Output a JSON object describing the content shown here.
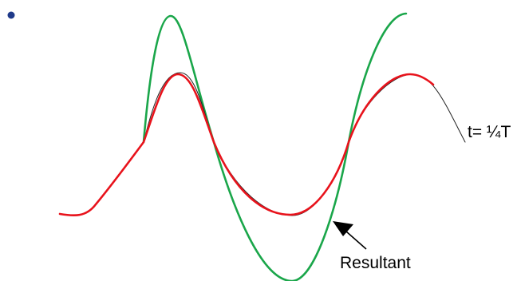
{
  "labels": {
    "time": "t= ¼T",
    "resultant": "Resultant"
  },
  "colors": {
    "bullet": "#1f3a8a",
    "green_wave": "#1aa64a",
    "red_wave": "#e8121b",
    "black_wave": "#222222",
    "arrow": "#000000"
  },
  "icons": {
    "bullet": "bullet-dot",
    "pointer": "arrow-icon"
  }
}
